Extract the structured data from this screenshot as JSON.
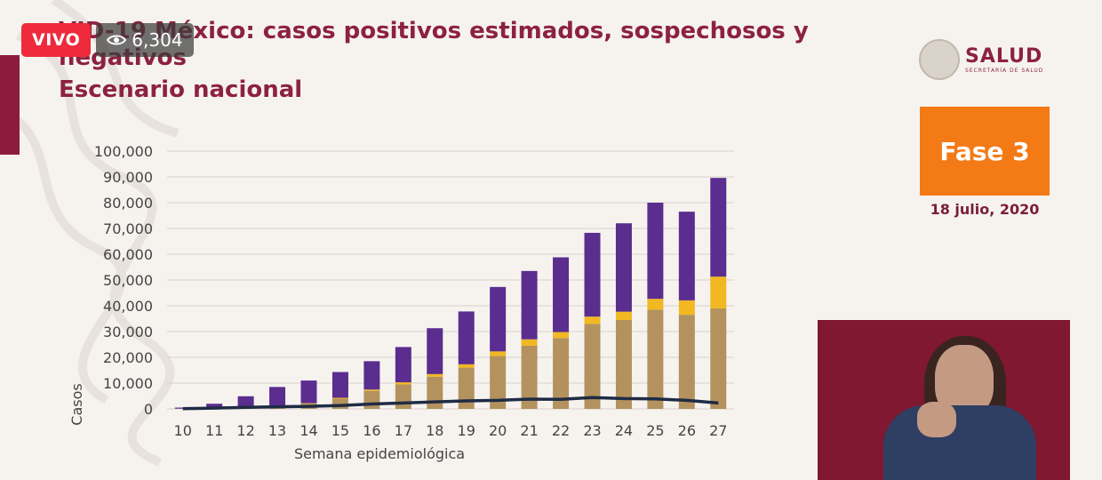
{
  "live": {
    "label": "VIVO",
    "viewers": "6,304",
    "icon": "eye-icon"
  },
  "title": {
    "line1": "VID-19 México: casos positivos estimados, sospechosos y",
    "line2": "negativos",
    "line3": "Escenario nacional"
  },
  "logo": {
    "main": "SALUD",
    "sub": "SECRETARÍA DE SALUD"
  },
  "phase": {
    "label": "Fase 3",
    "date": "18 julio, 2020"
  },
  "colors": {
    "brand": "#8d2142",
    "phase": "#f47a16",
    "estimated": "#b3925e",
    "suspected": "#f2b821",
    "negative": "#5b2d8e",
    "line": "#1f2b45"
  },
  "chart_data": {
    "type": "bar",
    "stacked": true,
    "title": "",
    "xlabel": "Semana epidemiológica",
    "ylabel": "Casos",
    "ylim": [
      0,
      100000
    ],
    "yticks": [
      "0",
      "10,000",
      "20,000",
      "30,000",
      "40,000",
      "50,000",
      "60,000",
      "70,000",
      "80,000",
      "90,000",
      "100,000"
    ],
    "categories": [
      "10",
      "11",
      "12",
      "13",
      "14",
      "15",
      "16",
      "17",
      "18",
      "19",
      "20",
      "21",
      "22",
      "23",
      "24",
      "25",
      "26",
      "27"
    ],
    "series": [
      {
        "values": [
          100,
          200,
          500,
          1000,
          2000,
          4000,
          7000,
          9500,
          12500,
          16000,
          20500,
          24500,
          27500,
          33000,
          34500,
          38500,
          36500,
          39000
        ]
      },
      {
        "values": [
          0,
          0,
          0,
          100,
          200,
          300,
          500,
          800,
          1000,
          1300,
          1800,
          2500,
          2300,
          2800,
          3200,
          4200,
          5600,
          12300
        ]
      },
      {
        "values": [
          400,
          1800,
          4400,
          7400,
          8800,
          10000,
          11000,
          13700,
          17800,
          20500,
          25000,
          26500,
          29000,
          32500,
          34300,
          37300,
          34400,
          38300
        ]
      }
    ],
    "line": {
      "type": "line",
      "values": [
        100,
        300,
        600,
        800,
        1000,
        1300,
        1900,
        2300,
        2700,
        3100,
        3300,
        3800,
        3700,
        4400,
        4000,
        3900,
        3300,
        2300
      ]
    },
    "grid": true
  }
}
